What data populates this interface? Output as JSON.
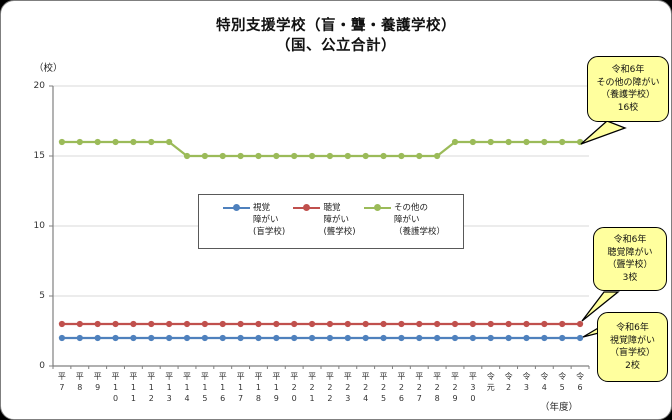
{
  "title": {
    "line1": "特別支援学校（盲・聾・養護学校）",
    "line2": "（国、公立合計）"
  },
  "chart_data": {
    "type": "line",
    "title": "特別支援学校（盲・聾・養護学校）（国、公立合計）",
    "ylabel": "（校）",
    "xlabel": "（年度）",
    "ylim": [
      0,
      20
    ],
    "yticks": [
      0,
      5,
      10,
      15,
      20
    ],
    "grid": true,
    "legend_position": "center-inside",
    "categories": [
      "平7",
      "平8",
      "平9",
      "平10",
      "平11",
      "平12",
      "平13",
      "平14",
      "平15",
      "平16",
      "平17",
      "平18",
      "平19",
      "平20",
      "平21",
      "平22",
      "平23",
      "平24",
      "平25",
      "平26",
      "平27",
      "平28",
      "平29",
      "平30",
      "令元",
      "令2",
      "令3",
      "令4",
      "令5",
      "令6"
    ],
    "series": [
      {
        "name": "視覚障がい(盲学校)",
        "legend_lines": [
          "視覚",
          "障がい",
          "(盲学校)"
        ],
        "color": "#4F81BD",
        "values": [
          2,
          2,
          2,
          2,
          2,
          2,
          2,
          2,
          2,
          2,
          2,
          2,
          2,
          2,
          2,
          2,
          2,
          2,
          2,
          2,
          2,
          2,
          2,
          2,
          2,
          2,
          2,
          2,
          2,
          2
        ]
      },
      {
        "name": "聴覚障がい(聾学校)",
        "legend_lines": [
          "聴覚",
          "障がい",
          "(聾学校)"
        ],
        "color": "#C0504D",
        "values": [
          3,
          3,
          3,
          3,
          3,
          3,
          3,
          3,
          3,
          3,
          3,
          3,
          3,
          3,
          3,
          3,
          3,
          3,
          3,
          3,
          3,
          3,
          3,
          3,
          3,
          3,
          3,
          3,
          3,
          3
        ]
      },
      {
        "name": "その他の障がい（養護学校）",
        "legend_lines": [
          "その他の",
          "障がい",
          "（養護学校）"
        ],
        "color": "#9BBB59",
        "values": [
          16,
          16,
          16,
          16,
          16,
          16,
          16,
          15,
          15,
          15,
          15,
          15,
          15,
          15,
          15,
          15,
          15,
          15,
          15,
          15,
          15,
          15,
          16,
          16,
          16,
          16,
          16,
          16,
          16,
          16
        ]
      }
    ]
  },
  "callouts": [
    {
      "lines": [
        "令和6年",
        "その他の障がい",
        "（養護学校）",
        "16校"
      ]
    },
    {
      "lines": [
        "令和6年",
        "聴覚障がい",
        "（聾学校）",
        "3校"
      ]
    },
    {
      "lines": [
        "令和6年",
        "視覚障がい",
        "（盲学校）",
        "2校"
      ]
    }
  ],
  "colors": {
    "blue": "#4F81BD",
    "red": "#C0504D",
    "green": "#9BBB59",
    "gridline": "#D9D9D9",
    "axis": "#808080",
    "callout_fill": "#FFFF9E"
  }
}
